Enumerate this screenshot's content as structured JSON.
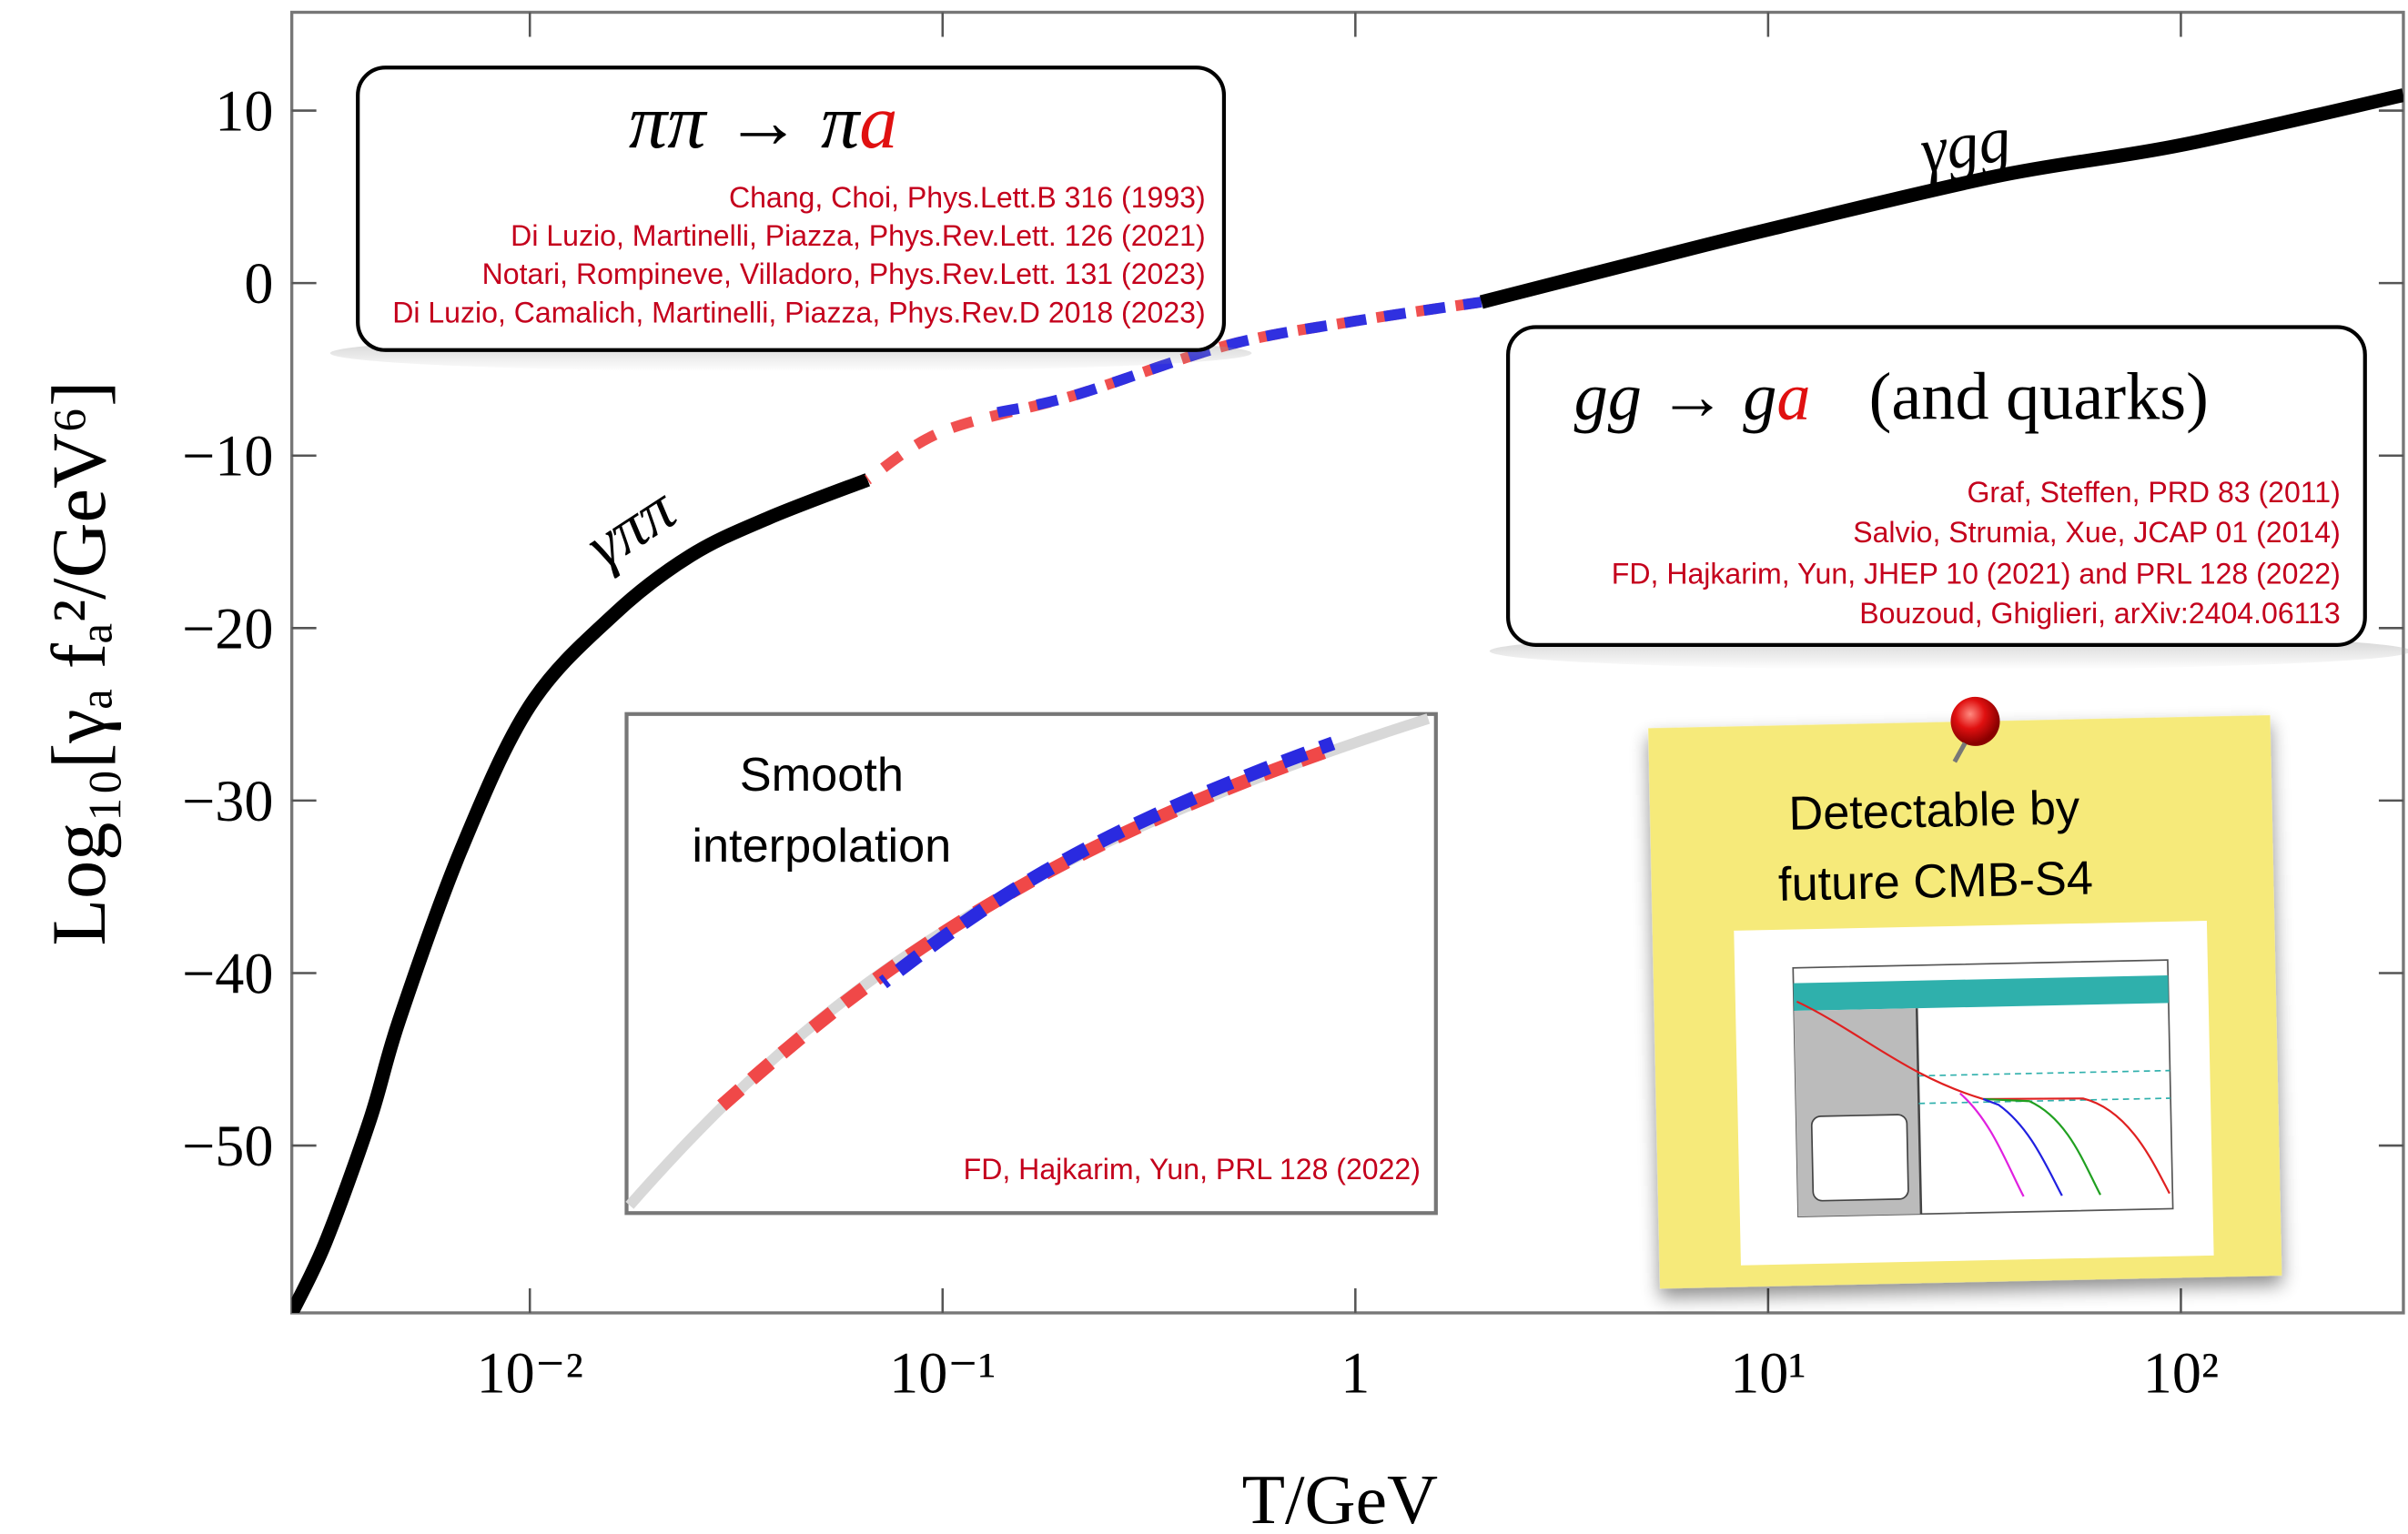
{
  "chart_data": {
    "type": "line",
    "x_label": "T/GeV",
    "y_label": "Log₁₀[γₐ fₐ²/GeV⁶]",
    "xscale": "log",
    "xlim": [
      0.00265,
      346
    ],
    "ylim": [
      -59.7,
      15.7
    ],
    "xticks": [
      {
        "value": 0.01,
        "label": "10⁻²"
      },
      {
        "value": 0.1,
        "label": "10⁻¹"
      },
      1,
      {
        "value": 10,
        "label": "10¹"
      },
      {
        "value": 100,
        "label": "10²"
      }
    ],
    "yticks": [
      10,
      0,
      {
        "value": -10,
        "label": "−10"
      },
      {
        "value": -20,
        "label": "−20"
      },
      {
        "value": -30,
        "label": "−30"
      },
      {
        "value": -40,
        "label": "−40"
      },
      {
        "value": -50,
        "label": "−50"
      }
    ],
    "series": [
      {
        "name": "γππ",
        "color": "#000000",
        "dash": false,
        "x": [
          0.00265,
          0.0032,
          0.0041,
          0.00483,
          0.0068,
          0.01,
          0.016,
          0.0245,
          0.038,
          0.0658
        ],
        "values": [
          -59.7,
          -55.6,
          -48.5,
          -42.7,
          -32.9,
          -24.5,
          -19.2,
          -15.8,
          -13.6,
          -11.4
        ]
      },
      {
        "color": "#f05050",
        "dash": true,
        "x": [
          0.0658,
          0.1,
          0.209,
          0.49,
          1.0,
          2.02
        ],
        "values": [
          -11.4,
          -8.6,
          -6.5,
          -3.6,
          -2.2,
          -1.1
        ]
      },
      {
        "color": "#3030e0",
        "dash": true,
        "x": [
          0.136,
          0.209,
          0.49,
          1.0,
          2.02
        ],
        "values": [
          -7.5,
          -6.5,
          -3.6,
          -2.2,
          -1.1
        ]
      },
      {
        "name": "γgg",
        "color": "#000000",
        "dash": false,
        "x": [
          2.02,
          5,
          10,
          35.8,
          100,
          346
        ],
        "values": [
          -1.1,
          1.3,
          3.1,
          6.2,
          8.0,
          10.9
        ]
      }
    ],
    "annotations": {
      "pion_box": {
        "title": [
          "ππ → π",
          "a"
        ],
        "refs": [
          "Chang, Choi, Phys.Lett.B 316 (1993)",
          "Di Luzio, Martinelli, Piazza, Phys.Rev.Lett. 126 (2021)",
          "Notari, Rompineve, Villadoro, Phys.Rev.Lett. 131 (2023)",
          "Di Luzio, Camalich, Martinelli, Piazza, Phys.Rev.D 2018 (2023)"
        ]
      },
      "gluon_box": {
        "title": [
          "gg → g",
          "a",
          "(and quarks)"
        ],
        "refs": [
          "Graf, Steffen, PRD 83 (2011)",
          "Salvio, Strumia, Xue, JCAP 01 (2014)",
          "FD, Hajkarim, Yun,  JHEP 10 (2021) and PRL 128 (2022)",
          "Bouzoud, Ghiglieri, arXiv:2404.06113"
        ]
      },
      "inset": {
        "title": [
          "Smooth",
          "interpolation"
        ],
        "ref": "FD, Hajkarim, Yun, PRL 128 (2022)"
      },
      "note": {
        "lines": [
          "Detectable by",
          "future CMB-S4"
        ]
      }
    }
  }
}
